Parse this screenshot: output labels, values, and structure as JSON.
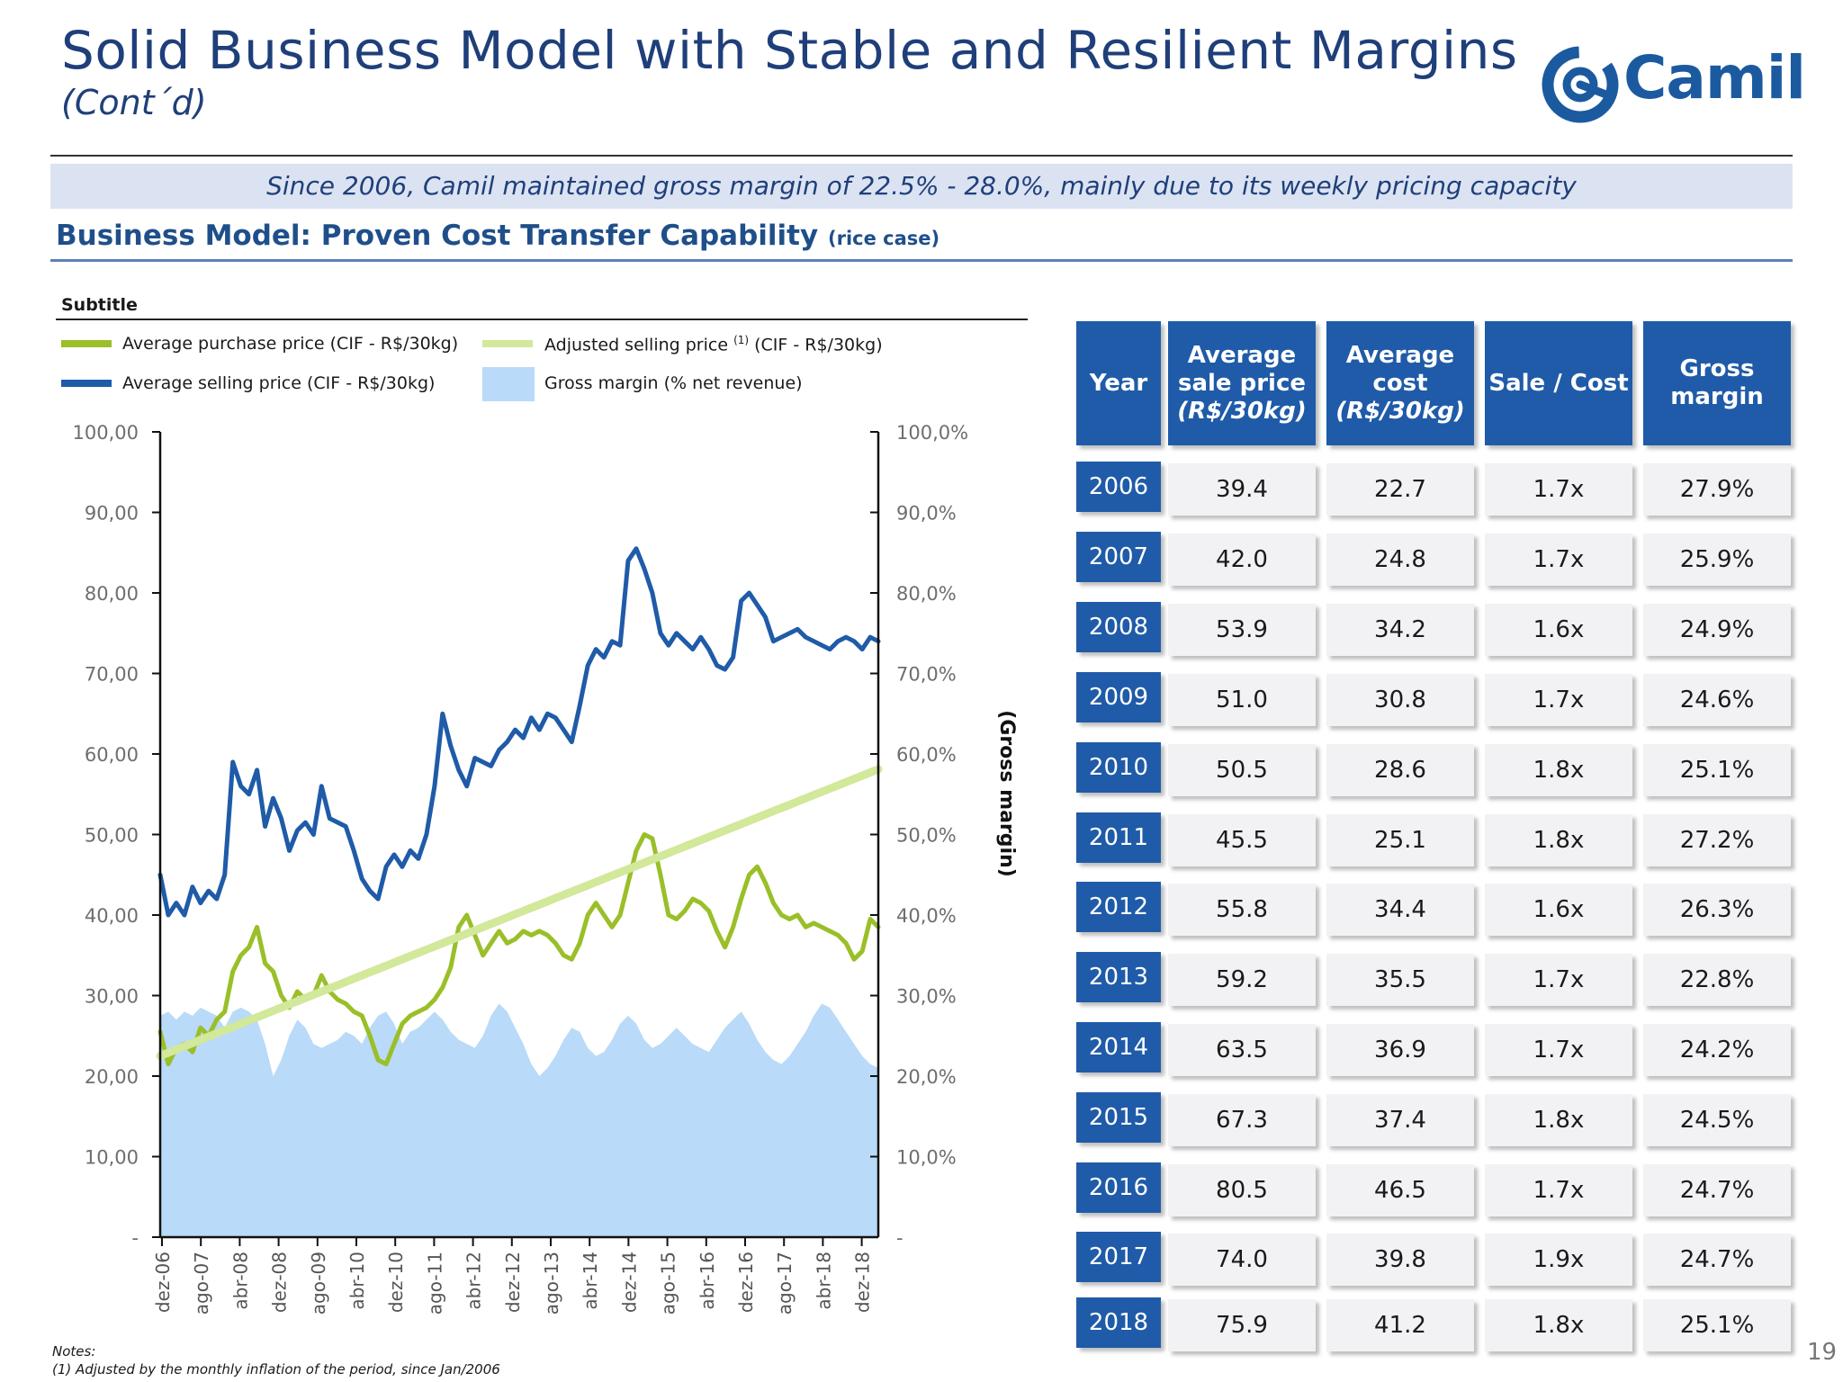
{
  "header": {
    "title": "Solid Business Model with Stable and Resilient Margins",
    "subtitle": "(Cont´d)",
    "logo_text": "Camil",
    "banner": "Since 2006, Camil maintained gross margin of 22.5% - 28.0%, mainly due to its weekly pricing capacity",
    "section_title": "Business Model: Proven Cost Transfer Capability",
    "section_suffix": "(rice case)"
  },
  "colors": {
    "navy": "#1f3f7a",
    "selling": "#1f5ba8",
    "purchase": "#9abf28",
    "adjusted": "#d2e89a",
    "margin_area": "#b9daf8"
  },
  "chart_data": {
    "type": "line",
    "subtitle": "Subtitle",
    "legend": [
      "Average purchase price (CIF - R$/30kg)",
      "Adjusted selling price (1) (CIF - R$/30kg)",
      "Average selling price (CIF - R$/30kg)",
      "Gross margin (% net revenue)"
    ],
    "legend_sup": "(1)",
    "legend_adjusted_parts": [
      "Adjusted selling price ",
      " (CIF - R$/30kg)"
    ],
    "y_left_ticks": [
      "100,00",
      "90,00",
      "80,00",
      "70,00",
      "60,00",
      "50,00",
      "40,00",
      "30,00",
      "20,00",
      "10,00",
      "-"
    ],
    "y_right_ticks": [
      "100,0%",
      "90,0%",
      "80,0%",
      "70,0%",
      "60,0%",
      "50,0%",
      "40,0%",
      "30,0%",
      "20,0%",
      "10,0%",
      "-"
    ],
    "y_right_label": "(Gross margin)",
    "ylim": [
      0,
      100
    ],
    "x_ticks": [
      "dez-06",
      "ago-07",
      "abr-08",
      "dez-08",
      "ago-09",
      "abr-10",
      "dez-10",
      "ago-11",
      "abr-12",
      "dez-12",
      "ago-13",
      "abr-14",
      "dez-14",
      "ago-15",
      "abr-16",
      "dez-16",
      "ago-17",
      "abr-18",
      "dez-18"
    ],
    "series": [
      {
        "name": "Gross margin (% net revenue)",
        "kind": "area",
        "values": [
          27.5,
          28.0,
          27.0,
          28.0,
          27.5,
          28.5,
          28.0,
          27.5,
          26.0,
          28.0,
          28.5,
          28.0,
          27.0,
          24.0,
          20.0,
          22.0,
          25.0,
          27.0,
          26.0,
          24.0,
          23.5,
          24.0,
          24.5,
          25.5,
          25.0,
          24.0,
          26.0,
          27.5,
          28.0,
          26.5,
          24.0,
          25.5,
          26.0,
          27.0,
          28.0,
          27.0,
          25.5,
          24.5,
          24.0,
          23.5,
          25.0,
          27.5,
          29.0,
          28.0,
          26.0,
          24.0,
          21.5,
          20.0,
          21.0,
          22.5,
          24.5,
          26.0,
          25.5,
          23.5,
          22.5,
          23.0,
          24.5,
          26.5,
          27.5,
          26.5,
          24.5,
          23.5,
          24.0,
          25.0,
          26.0,
          25.0,
          24.0,
          23.5,
          23.0,
          24.5,
          26.0,
          27.0,
          28.0,
          26.5,
          24.5,
          23.0,
          22.0,
          21.5,
          22.5,
          24.0,
          25.5,
          27.5,
          29.0,
          28.5,
          27.0,
          25.5,
          24.0,
          22.5,
          21.5,
          21.0
        ]
      },
      {
        "name": "Average purchase price (CIF - R$/30kg)",
        "kind": "line",
        "values": [
          25.5,
          21.5,
          23.5,
          24.0,
          23.0,
          26.0,
          25.0,
          27.0,
          28.0,
          33.0,
          35.0,
          36.0,
          38.5,
          34.0,
          33.0,
          30.0,
          28.5,
          30.5,
          29.5,
          30.0,
          32.5,
          30.5,
          29.5,
          29.0,
          28.0,
          27.5,
          25.0,
          22.0,
          21.5,
          24.0,
          26.5,
          27.5,
          28.0,
          28.5,
          29.5,
          31.0,
          33.5,
          38.5,
          40.0,
          37.5,
          35.0,
          36.5,
          38.0,
          36.5,
          37.0,
          38.0,
          37.5,
          38.0,
          37.5,
          36.5,
          35.0,
          34.5,
          36.5,
          40.0,
          41.5,
          40.0,
          38.5,
          40.0,
          44.0,
          48.0,
          50.0,
          49.5,
          45.0,
          40.0,
          39.5,
          40.5,
          42.0,
          41.5,
          40.5,
          38.0,
          36.0,
          38.5,
          42.0,
          45.0,
          46.0,
          44.0,
          41.5,
          40.0,
          39.5,
          40.0,
          38.5,
          39.0,
          38.5,
          38.0,
          37.5,
          36.5,
          34.5,
          35.5,
          39.5,
          38.5
        ]
      },
      {
        "name": "Adjusted selling price (1) (CIF - R$/30kg)",
        "kind": "line",
        "values": [
          22.5,
          22.9,
          23.3,
          23.7,
          24.1,
          24.5,
          24.9,
          25.3,
          25.7,
          26.1,
          26.5,
          26.9,
          27.3,
          27.7,
          28.1,
          28.5,
          28.9,
          29.3,
          29.7,
          30.1,
          30.5,
          30.9,
          31.3,
          31.7,
          32.1,
          32.5,
          32.9,
          33.3,
          33.7,
          34.1,
          34.5,
          34.9,
          35.3,
          35.7,
          36.1,
          36.5,
          36.9,
          37.3,
          37.7,
          38.1,
          38.5,
          38.9,
          39.3,
          39.7,
          40.1,
          40.5,
          40.9,
          41.3,
          41.7,
          42.1,
          42.5,
          42.9,
          43.3,
          43.7,
          44.1,
          44.5,
          44.9,
          45.3,
          45.7,
          46.1,
          46.5,
          46.9,
          47.3,
          47.7,
          48.1,
          48.5,
          48.9,
          49.3,
          49.7,
          50.1,
          50.5,
          50.9,
          51.3,
          51.7,
          52.1,
          52.5,
          52.9,
          53.3,
          53.7,
          54.1,
          54.5,
          54.9,
          55.3,
          55.7,
          56.1,
          56.5,
          56.9,
          57.3,
          57.7,
          58.1
        ]
      },
      {
        "name": "Average selling price (CIF - R$/30kg)",
        "kind": "line",
        "values": [
          45.0,
          40.0,
          41.5,
          40.0,
          43.5,
          41.5,
          43.0,
          42.0,
          45.0,
          59.0,
          56.0,
          55.0,
          58.0,
          51.0,
          54.5,
          52.0,
          48.0,
          50.5,
          51.5,
          50.0,
          56.0,
          52.0,
          51.5,
          51.0,
          48.0,
          44.5,
          43.0,
          42.0,
          46.0,
          47.5,
          46.0,
          48.0,
          47.0,
          50.0,
          56.0,
          65.0,
          61.0,
          58.0,
          56.0,
          59.5,
          59.0,
          58.5,
          60.5,
          61.5,
          63.0,
          62.0,
          64.5,
          63.0,
          65.0,
          64.5,
          63.0,
          61.5,
          66.0,
          71.0,
          73.0,
          72.0,
          74.0,
          73.5,
          84.0,
          85.5,
          83.0,
          80.0,
          75.0,
          73.5,
          75.0,
          74.0,
          73.0,
          74.5,
          73.0,
          71.0,
          70.5,
          72.0,
          79.0,
          80.0,
          78.5,
          77.0,
          74.0,
          74.5,
          75.0,
          75.5,
          74.5,
          74.0,
          73.5,
          73.0,
          74.0,
          74.5,
          74.0,
          73.0,
          74.5,
          74.0
        ]
      }
    ]
  },
  "table": {
    "headers": [
      "Year",
      "Average sale price (R$/30kg)",
      "Average cost (R$/30kg)",
      "Sale / Cost",
      "Gross margin"
    ],
    "header_lines": [
      [
        "Year"
      ],
      [
        "Average",
        "sale price",
        "(R$/30kg)"
      ],
      [
        "Average",
        "cost",
        "(R$/30kg)"
      ],
      [
        "Sale / Cost"
      ],
      [
        "Gross",
        "margin"
      ]
    ],
    "rows": [
      [
        "2006",
        "39.4",
        "22.7",
        "1.7x",
        "27.9%"
      ],
      [
        "2007",
        "42.0",
        "24.8",
        "1.7x",
        "25.9%"
      ],
      [
        "2008",
        "53.9",
        "34.2",
        "1.6x",
        "24.9%"
      ],
      [
        "2009",
        "51.0",
        "30.8",
        "1.7x",
        "24.6%"
      ],
      [
        "2010",
        "50.5",
        "28.6",
        "1.8x",
        "25.1%"
      ],
      [
        "2011",
        "45.5",
        "25.1",
        "1.8x",
        "27.2%"
      ],
      [
        "2012",
        "55.8",
        "34.4",
        "1.6x",
        "26.3%"
      ],
      [
        "2013",
        "59.2",
        "35.5",
        "1.7x",
        "22.8%"
      ],
      [
        "2014",
        "63.5",
        "36.9",
        "1.7x",
        "24.2%"
      ],
      [
        "2015",
        "67.3",
        "37.4",
        "1.8x",
        "24.5%"
      ],
      [
        "2016",
        "80.5",
        "46.5",
        "1.7x",
        "24.7%"
      ],
      [
        "2017",
        "74.0",
        "39.8",
        "1.9x",
        "24.7%"
      ],
      [
        "2018",
        "75.9",
        "41.2",
        "1.8x",
        "25.1%"
      ]
    ]
  },
  "notes": {
    "title": "Notes:",
    "line1": "(1) Adjusted by the monthly inflation of the period, since Jan/2006"
  },
  "page_number": "19"
}
